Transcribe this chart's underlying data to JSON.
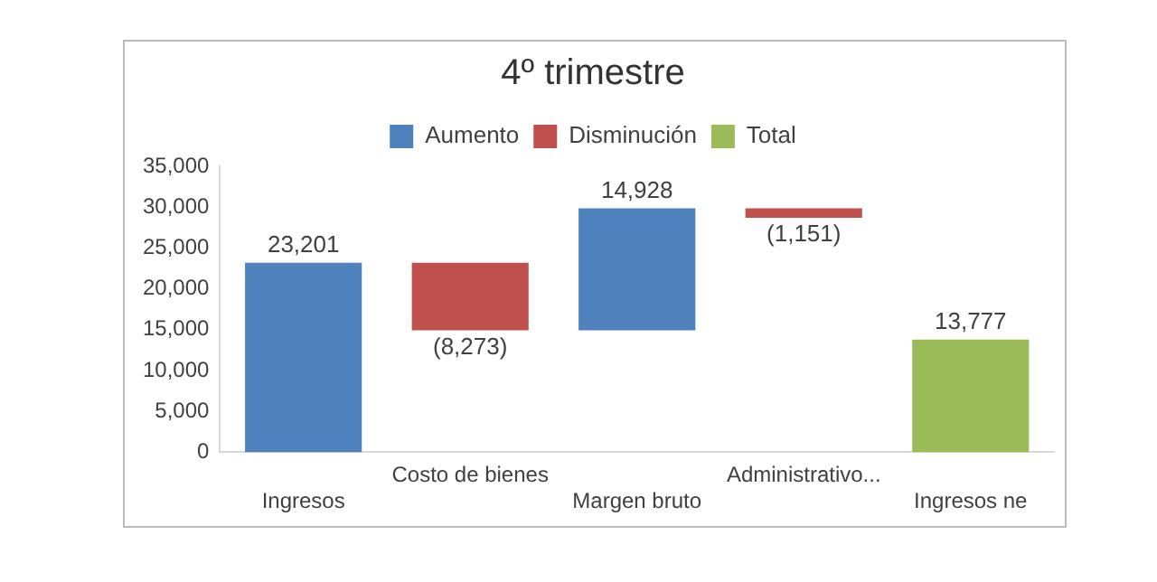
{
  "chart_data": {
    "type": "bar",
    "title": "4º trimestre",
    "categories": [
      "Ingresos",
      "Costo de bienes",
      "Margen bruto",
      "Administrativo...",
      "Ingresos ne"
    ],
    "series": [
      {
        "name": "Aumento",
        "color": "#4f81bd",
        "values": [
          23201,
          null,
          14928,
          null,
          null
        ],
        "base": [
          0,
          null,
          14928,
          null,
          null
        ],
        "value_labels": [
          "23,201",
          null,
          "14,928",
          null,
          null
        ]
      },
      {
        "name": "Disminución",
        "color": "#c0504d",
        "values": [
          null,
          -8273,
          null,
          -1151,
          null
        ],
        "base": [
          null,
          23201,
          null,
          29856,
          null
        ],
        "value_labels": [
          null,
          "(8,273)",
          null,
          "(1,151)",
          null
        ]
      },
      {
        "name": "Total",
        "color": "#9bbb59",
        "values": [
          null,
          null,
          null,
          null,
          13777
        ],
        "base": [
          null,
          null,
          null,
          null,
          0
        ],
        "value_labels": [
          null,
          null,
          null,
          null,
          "13,777"
        ]
      }
    ],
    "ylim": [
      0,
      35000
    ],
    "yticks": [
      {
        "value": 0,
        "label": "0"
      },
      {
        "value": 5000,
        "label": "5,000"
      },
      {
        "value": 10000,
        "label": "10,000"
      },
      {
        "value": 15000,
        "label": "15,000"
      },
      {
        "value": 20000,
        "label": "20,000"
      },
      {
        "value": 25000,
        "label": "25,000"
      },
      {
        "value": 30000,
        "label": "30,000"
      },
      {
        "value": 35000,
        "label": "35,000"
      }
    ],
    "grid": false,
    "legend": "top"
  }
}
